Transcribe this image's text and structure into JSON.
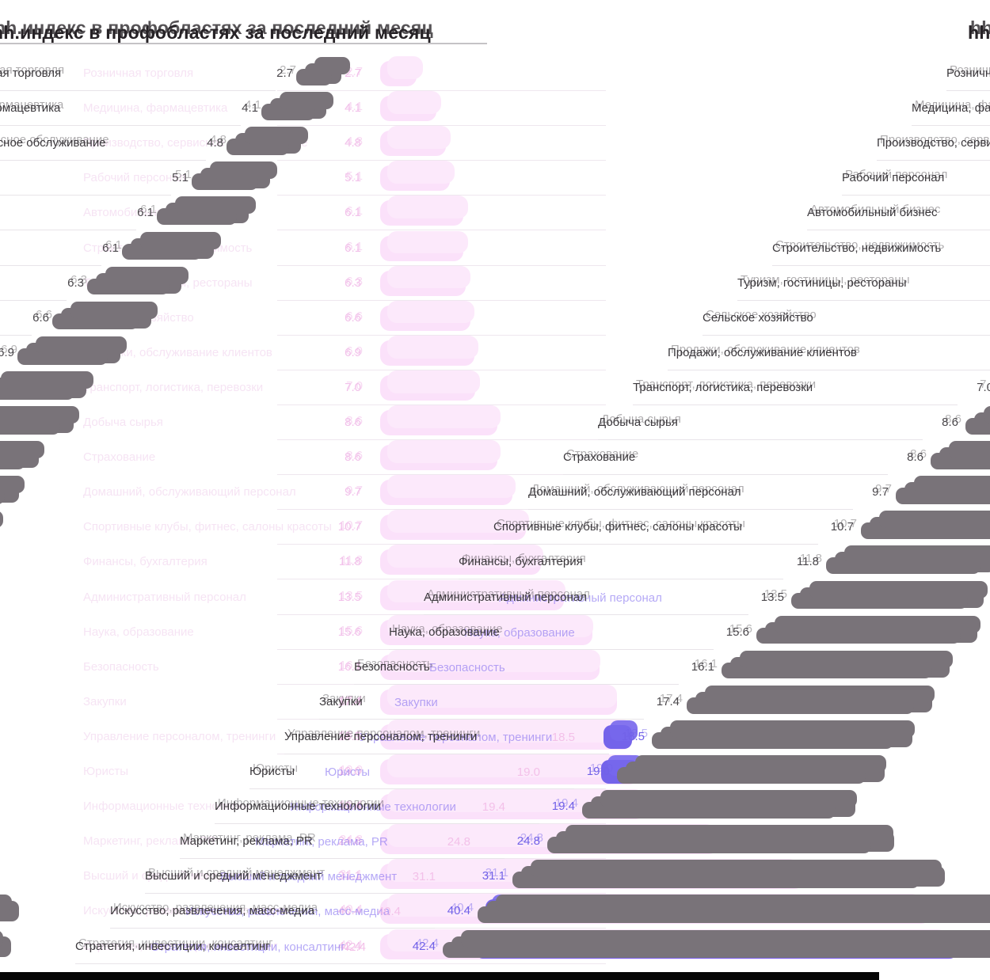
{
  "title": "hh.индекс в профобластях за последний месяц",
  "rows": [
    {
      "label": "Розничная торговля",
      "value": "2.7"
    },
    {
      "label": "Медицина, фармацевтика",
      "value": "4.1"
    },
    {
      "label": "Производство, сервисное обслуживание",
      "value": "4.8"
    },
    {
      "label": "Рабочий персонал",
      "value": "5.1"
    },
    {
      "label": "Автомобильный бизнес",
      "value": "6.1"
    },
    {
      "label": "Строительство, недвижимость",
      "value": "6.1"
    },
    {
      "label": "Туризм, гостиницы, рестораны",
      "value": "6.3"
    },
    {
      "label": "Сельское хозяйство",
      "value": "6.6"
    },
    {
      "label": "Продажи, обслуживание клиентов",
      "value": "6.9"
    },
    {
      "label": "Транспорт, логистика, перевозки",
      "value": "7.0"
    },
    {
      "label": "Добыча сырья",
      "value": "8.6"
    },
    {
      "label": "Страхование",
      "value": "8.6"
    },
    {
      "label": "Домашний, обслуживающий персонал",
      "value": "9.7"
    },
    {
      "label": "Спортивные клубы, фитнес, салоны красоты",
      "value": "10.7"
    },
    {
      "label": "Финансы, бухгалтерия",
      "value": "11.8"
    },
    {
      "label": "Административный персонал",
      "value": "13.5"
    },
    {
      "label": "Наука, образование",
      "value": "15.6"
    },
    {
      "label": "Безопасность",
      "value": "16.1"
    },
    {
      "label": "Закупки",
      "value": "17.4"
    },
    {
      "label": "Управление персоналом, тренинги",
      "value": "18.5"
    },
    {
      "label": "Юристы",
      "value": "19.0"
    },
    {
      "label": "Информационные технологии",
      "value": "19.4"
    },
    {
      "label": "Маркетинг, реклама, PR",
      "value": "24.8"
    },
    {
      "label": "Высший и средний менеджмент",
      "value": "31.1"
    },
    {
      "label": "Искусство, развлечения, масс-медиа",
      "value": "40.4"
    },
    {
      "label": "Стратегия, инвестиции, консалтинг",
      "value": "42.4"
    }
  ],
  "colors": {
    "gray_bar": "#797379",
    "pale_pink_bar": "#fbe1fa",
    "violet_bar": "#7463ea",
    "pink_value_text": "#f2c0ea",
    "violet_value_text": "#7262e8",
    "label_text": "#3d3a3e",
    "separator": "#e8e4e9",
    "title_text": "#262226",
    "bottom_strip": "#060606"
  },
  "chart_data": {
    "type": "bar",
    "orientation": "horizontal",
    "title": "hh.индекс в профобластях за последний месяц",
    "categories": [
      "Розничная торговля",
      "Медицина, фармацевтика",
      "Производство, сервисное обслуживание",
      "Рабочий персонал",
      "Автомобильный бизнес",
      "Строительство, недвижимость",
      "Туризм, гостиницы, рестораны",
      "Сельское хозяйство",
      "Продажи, обслуживание клиентов",
      "Транспорт, логистика, перевозки",
      "Добыча сырья",
      "Страхование",
      "Домашний, обслуживающий персонал",
      "Спортивные клубы, фитнес, салоны красоты",
      "Финансы, бухгалтерия",
      "Административный персонал",
      "Наука, образование",
      "Безопасность",
      "Закупки",
      "Управление персоналом, тренинги",
      "Юристы",
      "Информационные технологии",
      "Маркетинг, реклама, PR",
      "Высший и средний менеджмент",
      "Искусство, развлечения, масс-медиа",
      "Стратегия, инвестиции, консалтинг"
    ],
    "values": [
      2.7,
      4.1,
      4.8,
      5.1,
      6.1,
      6.1,
      6.3,
      6.6,
      6.9,
      7.0,
      8.6,
      8.6,
      9.7,
      10.7,
      11.8,
      13.5,
      15.6,
      16.1,
      17.4,
      18.5,
      19.0,
      19.4,
      24.8,
      31.1,
      40.4,
      42.4
    ],
    "xlabel": "",
    "ylabel": "",
    "xlim": [
      0,
      45
    ],
    "grid": false,
    "legend": false,
    "note_low_color": "#fbe1fa",
    "note_high_color": "#7463ea"
  }
}
